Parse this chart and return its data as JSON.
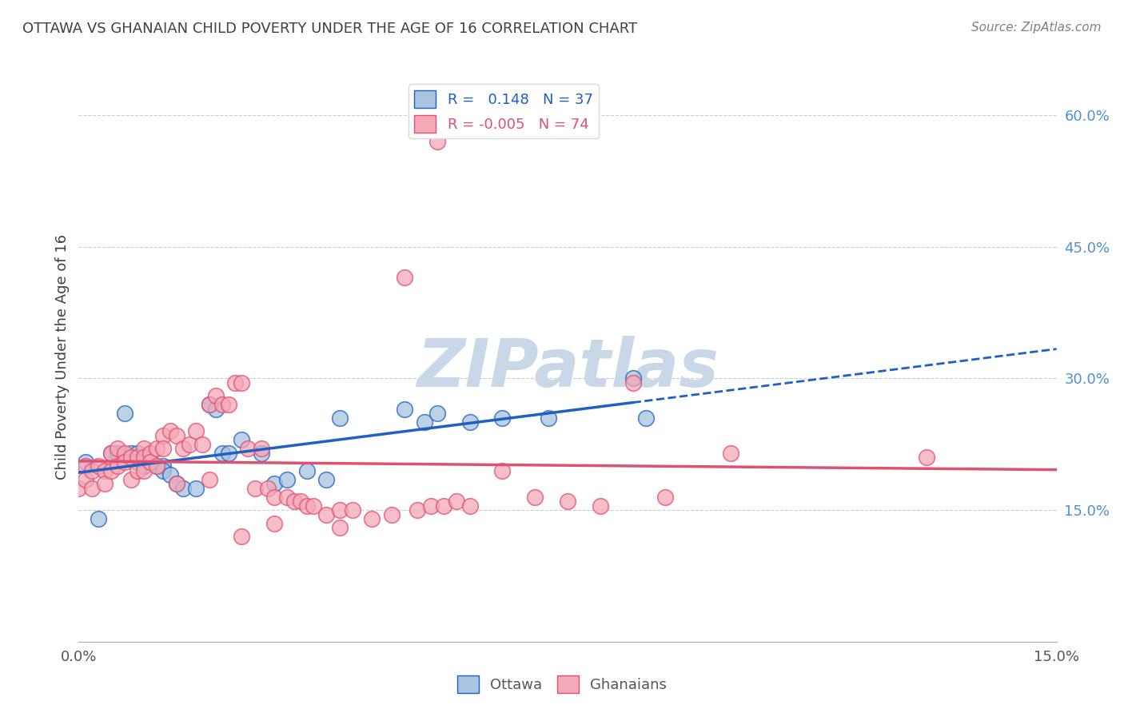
{
  "title": "OTTAWA VS GHANAIAN CHILD POVERTY UNDER THE AGE OF 16 CORRELATION CHART",
  "source": "Source: ZipAtlas.com",
  "ylabel": "Child Poverty Under the Age of 16",
  "xlim": [
    0.0,
    0.15
  ],
  "ylim": [
    0.0,
    0.65
  ],
  "xticks": [
    0.0,
    0.05,
    0.1,
    0.15
  ],
  "xtick_labels": [
    "0.0%",
    "",
    "",
    "15.0%"
  ],
  "ytick_labels_right": [
    "60.0%",
    "45.0%",
    "30.0%",
    "15.0%"
  ],
  "ytick_vals_right": [
    0.6,
    0.45,
    0.3,
    0.15
  ],
  "legend_r1": "R =   0.148   N = 37",
  "legend_r2": "R = -0.005   N = 74",
  "legend_color1": "#a8c4e0",
  "legend_color2": "#f4a8b8",
  "trendline1_color": "#2060c0",
  "trendline2_color": "#e05070",
  "watermark": "ZIPatlas",
  "watermark_color": "#c8d8e8",
  "background_color": "#ffffff",
  "grid_color": "#cccccc",
  "title_color": "#404040",
  "source_color": "#808080",
  "right_label_color": "#5090d0",
  "ottawa_x": [
    0.001,
    0.003,
    0.005,
    0.006,
    0.007,
    0.008,
    0.009,
    0.009,
    0.01,
    0.01,
    0.011,
    0.012,
    0.013,
    0.013,
    0.014,
    0.015,
    0.016,
    0.018,
    0.02,
    0.021,
    0.022,
    0.023,
    0.025,
    0.028,
    0.03,
    0.032,
    0.035,
    0.038,
    0.04,
    0.05,
    0.053,
    0.055,
    0.06,
    0.065,
    0.072,
    0.085,
    0.087
  ],
  "ottawa_y": [
    0.205,
    0.14,
    0.215,
    0.215,
    0.26,
    0.215,
    0.215,
    0.205,
    0.2,
    0.2,
    0.205,
    0.2,
    0.2,
    0.195,
    0.19,
    0.18,
    0.175,
    0.175,
    0.27,
    0.265,
    0.215,
    0.215,
    0.23,
    0.215,
    0.18,
    0.185,
    0.195,
    0.185,
    0.255,
    0.265,
    0.25,
    0.26,
    0.25,
    0.255,
    0.255,
    0.3,
    0.255
  ],
  "ghana_x": [
    0.0,
    0.001,
    0.001,
    0.002,
    0.002,
    0.003,
    0.004,
    0.004,
    0.005,
    0.005,
    0.006,
    0.006,
    0.007,
    0.007,
    0.008,
    0.008,
    0.009,
    0.009,
    0.01,
    0.01,
    0.01,
    0.011,
    0.011,
    0.012,
    0.012,
    0.013,
    0.013,
    0.014,
    0.015,
    0.015,
    0.016,
    0.017,
    0.018,
    0.019,
    0.02,
    0.02,
    0.021,
    0.022,
    0.023,
    0.024,
    0.025,
    0.026,
    0.027,
    0.028,
    0.029,
    0.03,
    0.032,
    0.033,
    0.034,
    0.035,
    0.036,
    0.038,
    0.04,
    0.042,
    0.045,
    0.048,
    0.05,
    0.052,
    0.054,
    0.056,
    0.058,
    0.06,
    0.065,
    0.07,
    0.075,
    0.08,
    0.085,
    0.09,
    0.1,
    0.025,
    0.03,
    0.04,
    0.055,
    0.13
  ],
  "ghana_y": [
    0.175,
    0.2,
    0.185,
    0.195,
    0.175,
    0.2,
    0.195,
    0.18,
    0.215,
    0.195,
    0.22,
    0.2,
    0.215,
    0.205,
    0.21,
    0.185,
    0.21,
    0.195,
    0.22,
    0.21,
    0.195,
    0.215,
    0.205,
    0.22,
    0.2,
    0.235,
    0.22,
    0.24,
    0.235,
    0.18,
    0.22,
    0.225,
    0.24,
    0.225,
    0.27,
    0.185,
    0.28,
    0.27,
    0.27,
    0.295,
    0.295,
    0.22,
    0.175,
    0.22,
    0.175,
    0.165,
    0.165,
    0.16,
    0.16,
    0.155,
    0.155,
    0.145,
    0.15,
    0.15,
    0.14,
    0.145,
    0.415,
    0.15,
    0.155,
    0.155,
    0.16,
    0.155,
    0.195,
    0.165,
    0.16,
    0.155,
    0.295,
    0.165,
    0.215,
    0.12,
    0.135,
    0.13,
    0.57,
    0.21
  ]
}
